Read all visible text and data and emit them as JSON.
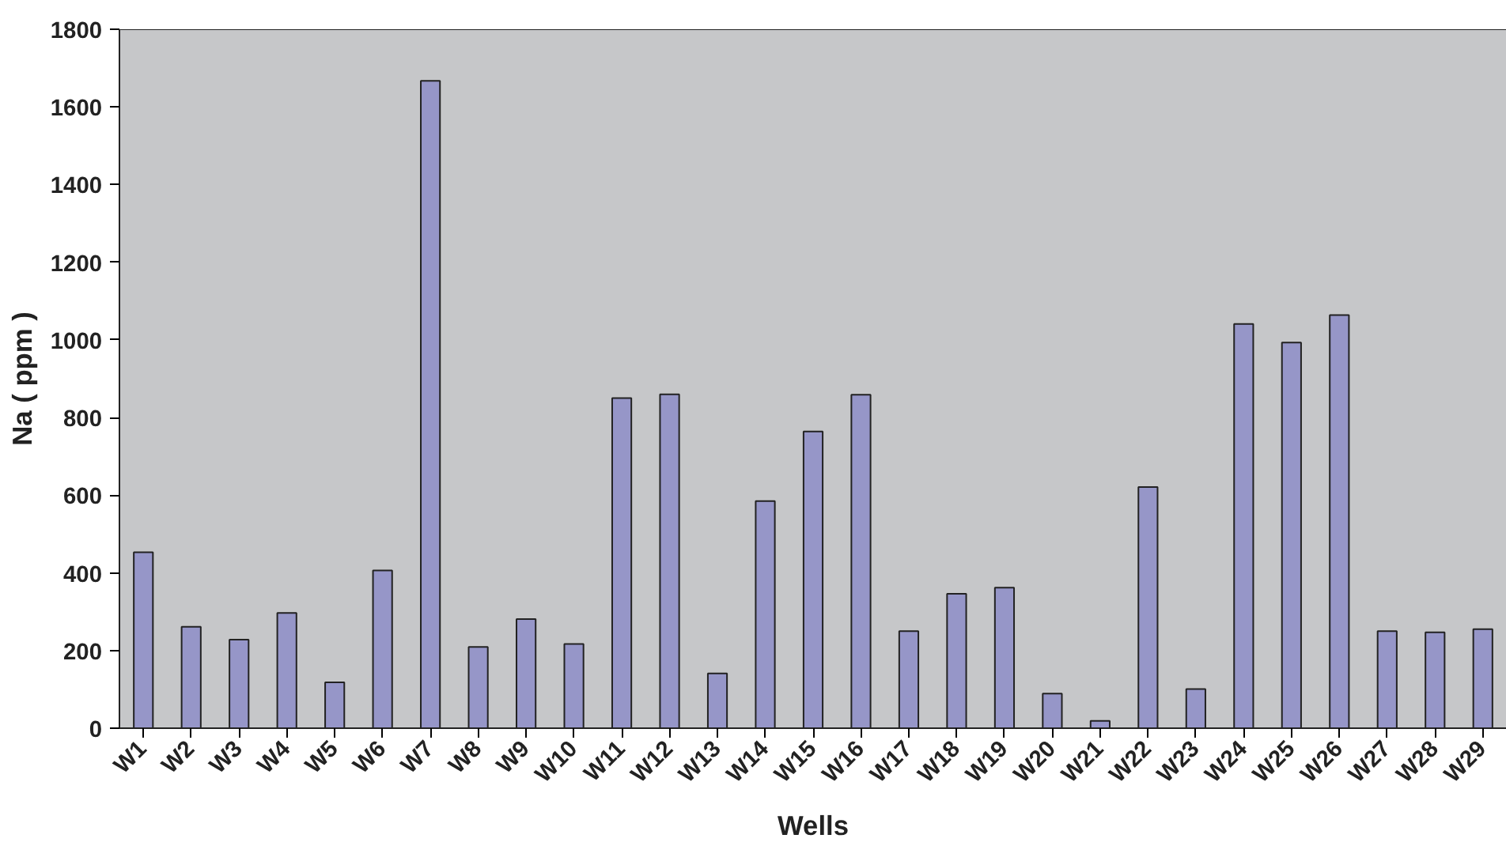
{
  "chart_data": {
    "type": "bar",
    "xlabel": "Wells",
    "ylabel": "Na ( ppm )",
    "categories": [
      "W1",
      "W2",
      "W3",
      "W4",
      "W5",
      "W6",
      "W7",
      "W8",
      "W9",
      "W10",
      "W11",
      "W12",
      "W13",
      "W14",
      "W15",
      "W16",
      "W17",
      "W18",
      "W19",
      "W20",
      "W21",
      "W22",
      "W23",
      "W24",
      "W25",
      "W26",
      "W27",
      "W28",
      "W29"
    ],
    "values": [
      453,
      261,
      228,
      297,
      118,
      406,
      1667,
      209,
      281,
      217,
      850,
      860,
      141,
      585,
      764,
      859,
      250,
      346,
      362,
      89,
      19,
      621,
      101,
      1041,
      993,
      1064,
      250,
      247,
      255
    ],
    "color": "#9696c8",
    "ylim": [
      0,
      1800
    ],
    "yticks": [
      0,
      200,
      400,
      600,
      800,
      1000,
      1200,
      1400,
      1600,
      1800
    ],
    "grid": false
  }
}
